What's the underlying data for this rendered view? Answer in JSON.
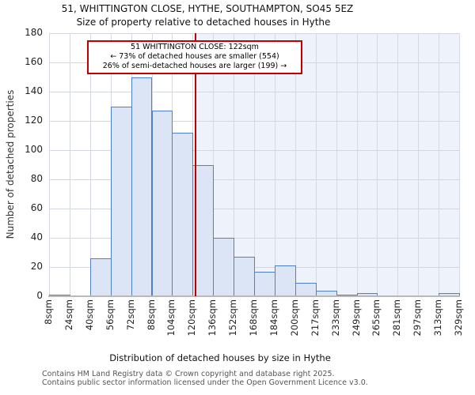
{
  "title": "51, WHITTINGTON CLOSE, HYTHE, SOUTHAMPTON, SO45 5EZ",
  "subtitle": "Size of property relative to detached houses in Hythe",
  "annotation": {
    "line1": "51 WHITTINGTON CLOSE: 122sqm",
    "line2": "← 73% of detached houses are smaller (554)",
    "line3": "26% of semi-detached houses are larger (199) →"
  },
  "y_axis": {
    "label": "Number of detached properties"
  },
  "x_axis": {
    "label": "Distribution of detached houses by size in Hythe"
  },
  "footer": {
    "line1": "Contains HM Land Registry data © Crown copyright and database right 2025.",
    "line2": "Contains public sector information licensed under the Open Government Licence v3.0."
  },
  "chart_data": {
    "type": "bar",
    "title": "51, WHITTINGTON CLOSE, HYTHE, SOUTHAMPTON, SO45 5EZ",
    "subtitle": "Size of property relative to detached houses in Hythe",
    "xlabel": "Distribution of detached houses by size in Hythe",
    "ylabel": "Number of detached properties",
    "ylim": [
      0,
      180
    ],
    "ytick_step": 20,
    "grid": true,
    "bin_edges_sqm": [
      8,
      24,
      40,
      56,
      72,
      88,
      104,
      120,
      136,
      152,
      168,
      184,
      200,
      217,
      233,
      249,
      265,
      281,
      297,
      313,
      329
    ],
    "tick_labels": [
      "8sqm",
      "24sqm",
      "40sqm",
      "56sqm",
      "72sqm",
      "88sqm",
      "104sqm",
      "120sqm",
      "136sqm",
      "152sqm",
      "168sqm",
      "184sqm",
      "200sqm",
      "217sqm",
      "233sqm",
      "249sqm",
      "265sqm",
      "281sqm",
      "297sqm",
      "313sqm",
      "329sqm"
    ],
    "values": [
      1,
      0,
      26,
      130,
      150,
      127,
      112,
      90,
      40,
      27,
      17,
      21,
      9,
      4,
      1,
      2,
      0,
      0,
      0,
      2
    ],
    "marker": {
      "value_sqm": 122,
      "smaller_pct": 73,
      "smaller_count": 554,
      "larger_pct": 26,
      "larger_count": 199
    },
    "colors": {
      "bar_fill": "#dbe5f5",
      "bar_edge": "#4f81c9",
      "marker_line": "#c00000",
      "shade_right_of_marker": "#edf2fb",
      "gridline": "#d5d9e0"
    }
  }
}
